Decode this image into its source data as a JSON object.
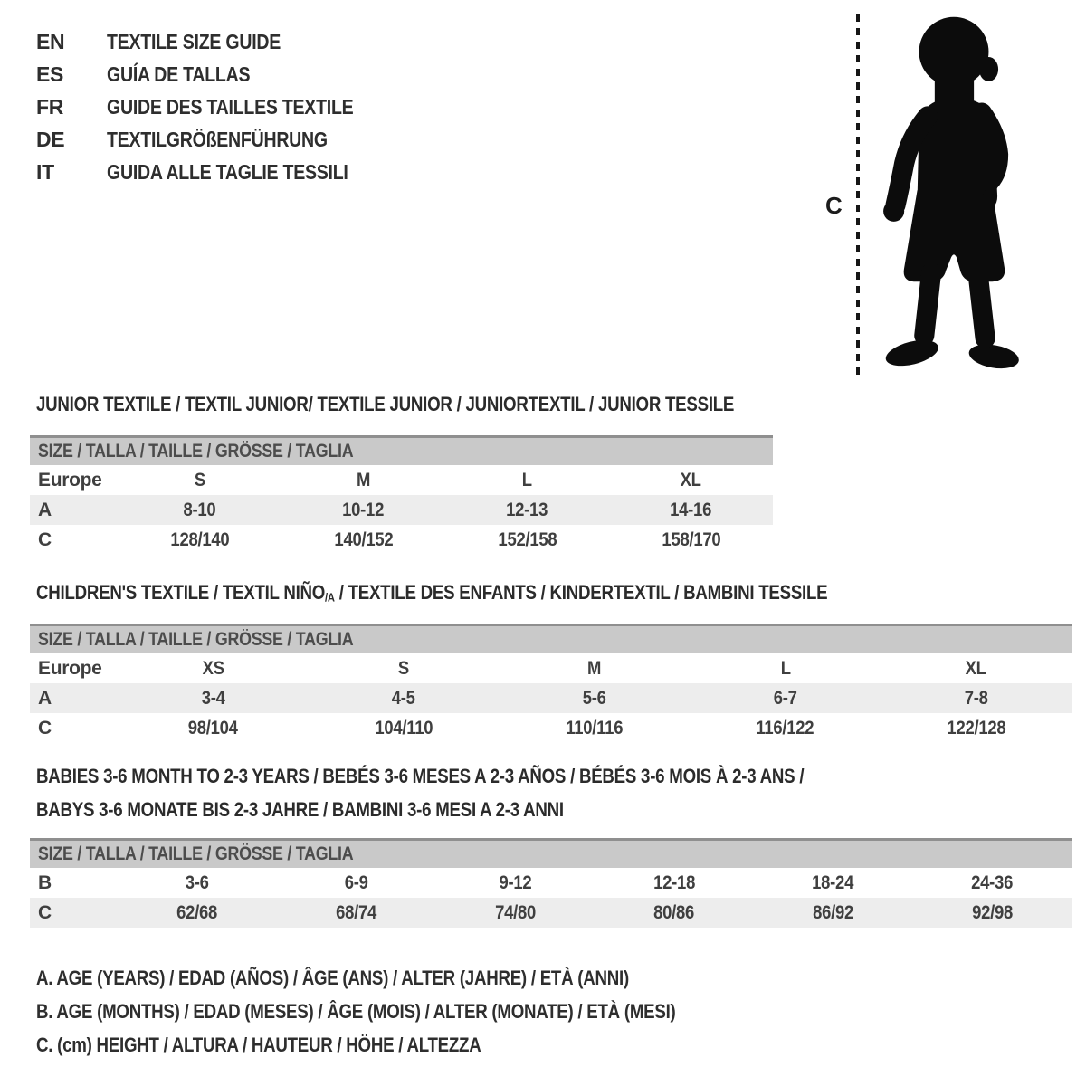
{
  "header": {
    "languages": [
      {
        "code": "EN",
        "label": "TEXTILE SIZE GUIDE"
      },
      {
        "code": "ES",
        "label": "GUÍA DE TALLAS"
      },
      {
        "code": "FR",
        "label": "GUIDE DES TAILLES TEXTILE"
      },
      {
        "code": "DE",
        "label": "TEXTILGRÖßENFÜHRUNG"
      },
      {
        "code": "IT",
        "label": "GUIDA ALLE TAGLIE TESSILI"
      }
    ]
  },
  "figure": {
    "label": "C",
    "icon": "toddler-silhouette-icon"
  },
  "sections": [
    {
      "name": "junior",
      "title": "JUNIOR TEXTILE / TEXTIL JUNIOR/ TEXTILE JUNIOR / JUNIORTEXTIL / JUNIOR TESSILE",
      "size_header": "SIZE / TALLA / TAILLE / GRÖSSE / TAGLIA",
      "rows": [
        {
          "label": "Europe",
          "values": [
            "S",
            "M",
            "L",
            "XL"
          ]
        },
        {
          "label": "A",
          "values": [
            "8-10",
            "10-12",
            "12-13",
            "14-16"
          ]
        },
        {
          "label": "C",
          "values": [
            "128/140",
            "140/152",
            "152/158",
            "158/170"
          ]
        }
      ]
    },
    {
      "name": "children",
      "title_pre": "CHILDREN'S TEXTILE / TEXTIL NIÑO",
      "title_sub": "/A",
      "title_post": " / TEXTILE DES ENFANTS / KINDERTEXTIL / BAMBINI TESSILE",
      "size_header": "SIZE / TALLA / TAILLE / GRÖSSE / TAGLIA",
      "rows": [
        {
          "label": "Europe",
          "values": [
            "XS",
            "S",
            "M",
            "L",
            "XL"
          ]
        },
        {
          "label": "A",
          "values": [
            "3-4",
            "4-5",
            "5-6",
            "6-7",
            "7-8"
          ]
        },
        {
          "label": "C",
          "values": [
            "98/104",
            "104/110",
            "110/116",
            "116/122",
            "122/128"
          ]
        }
      ]
    },
    {
      "name": "babies",
      "title_line1": "BABIES 3-6 MONTH TO 2-3 YEARS / BEBÉS 3-6 MESES A 2-3 AÑOS / BÉBÉS 3-6 MOIS À 2-3 ANS /",
      "title_line2": "BABYS 3-6 MONATE BIS 2-3 JAHRE / BAMBINI 3-6 MESI A 2-3 ANNI",
      "size_header": "SIZE / TALLA / TAILLE / GRÖSSE / TAGLIA",
      "rows": [
        {
          "label": "B",
          "values": [
            "3-6",
            "6-9",
            "9-12",
            "12-18",
            "18-24",
            "24-36"
          ]
        },
        {
          "label": "C",
          "values": [
            "62/68",
            "68/74",
            "74/80",
            "80/86",
            "86/92",
            "92/98"
          ]
        }
      ]
    }
  ],
  "legend": {
    "lines": [
      "A. AGE (YEARS) / EDAD (AÑOS) / ÂGE (ANS) / ALTER (JAHRE) / ETÀ (ANNI)",
      "B. AGE (MONTHS) / EDAD (MESES) / ÂGE (MOIS) / ALTER (MONATE) / ETÀ (MESI)",
      "C. (cm) HEIGHT / ALTURA / HAUTEUR / HÖHE / ALTEZZA"
    ]
  },
  "colors": {
    "bar_bg": "#c9c9c9",
    "row_shaded": "#ededed",
    "silhouette": "#0c0c0c"
  }
}
